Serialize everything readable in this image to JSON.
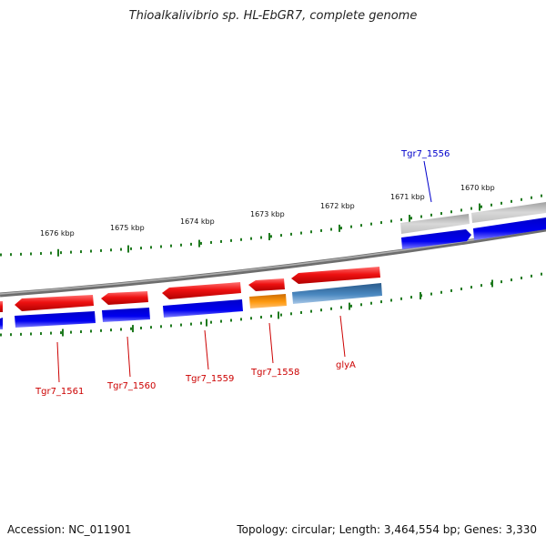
{
  "title": "Thioalkalivibrio sp. HL-EbGR7, complete genome",
  "accession_text": "Accession: NC_011901",
  "summary_text": "Topology: circular; Length: 3,464,554 bp; Genes: 3,330",
  "colors": {
    "forward_gene": "#e8141a",
    "reverse_gene": "#0000e0",
    "backbone": "#7f7f7f",
    "pseudo_gene": "#b8b8b8",
    "trna_gene": "#ee8a00",
    "rrna_gene": "#3c78b4",
    "tick": "#1f7a1f",
    "label_red": "#cc0000",
    "label_blue": "#0000cc"
  },
  "scale_labels": [
    "1676 kbp",
    "1675 kbp",
    "1674 kbp",
    "1673 kbp",
    "1672 kbp",
    "1671 kbp",
    "1670 kbp"
  ],
  "gene_labels": {
    "tgr7_1556": "Tgr7_1556",
    "tgr7_1561": "Tgr7_1561",
    "tgr7_1560": "Tgr7_1560",
    "tgr7_1559": "Tgr7_1559",
    "tgr7_1558": "Tgr7_1558",
    "glya": "glyA"
  }
}
